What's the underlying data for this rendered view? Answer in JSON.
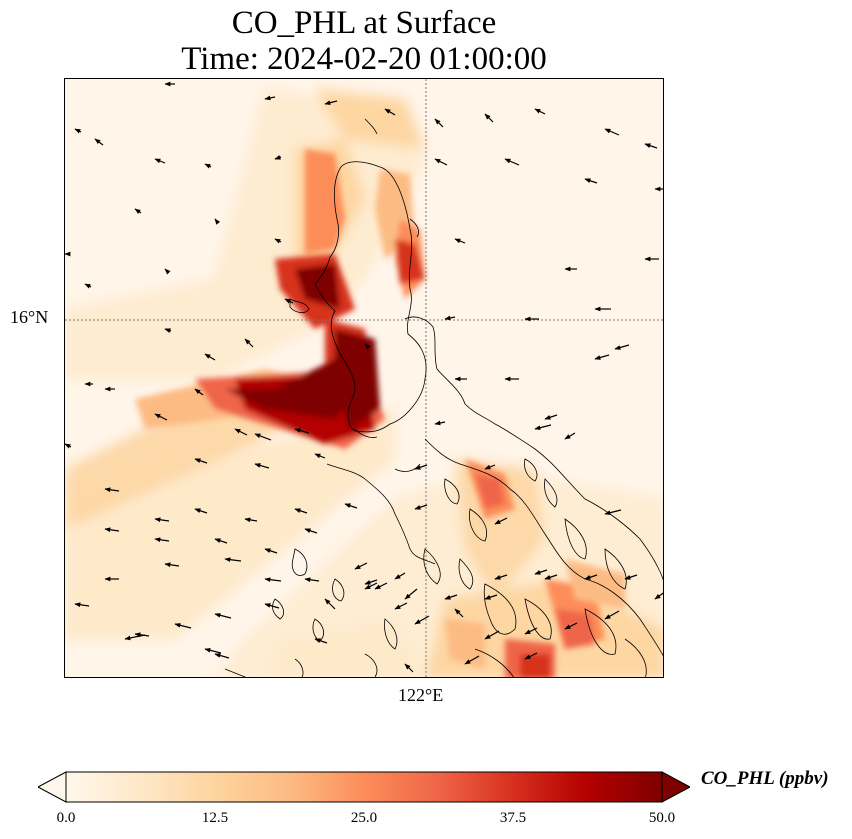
{
  "title": {
    "line1": "CO_PHL at Surface",
    "line2": "Time: 2024-02-20 01:00:00"
  },
  "axes": {
    "lat_gridline_label": "16°N",
    "lon_gridline_label": "122°E"
  },
  "colorbar": {
    "label": "CO_PHL (ppbv)",
    "min": 0,
    "max": 50,
    "ticks": [
      "0.0",
      "12.5",
      "25.0",
      "37.5",
      "50.0"
    ],
    "extend": "both",
    "colormap": "OrRd",
    "stops": [
      "#fff7ec",
      "#fee8c8",
      "#fdd49e",
      "#fdbb84",
      "#fc8d59",
      "#ef6548",
      "#d7301f",
      "#b30000",
      "#7f0000"
    ]
  },
  "map": {
    "wind_vectors": "shown",
    "coastlines": "shown",
    "gridlines": "dotted"
  }
}
